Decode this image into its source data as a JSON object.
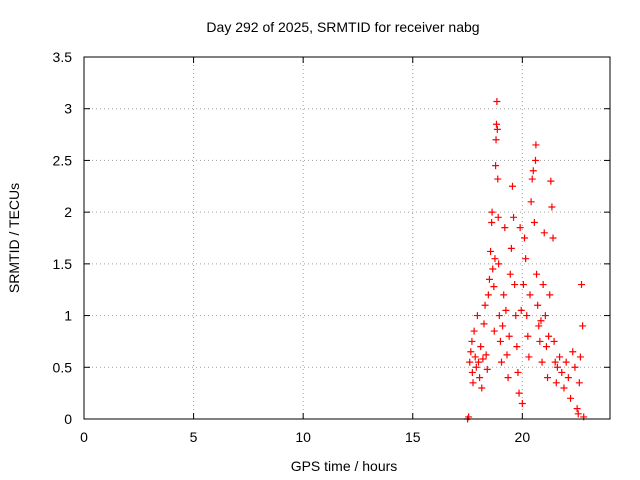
{
  "chart_data": {
    "type": "scatter",
    "title": "Day 292 of 2025, SRMTID for receiver nabg",
    "xlabel": "GPS time / hours",
    "ylabel": "SRMTID / TECUs",
    "xlim": [
      0,
      24
    ],
    "ylim": [
      0,
      3.5
    ],
    "xticks": [
      0,
      5,
      10,
      15,
      20
    ],
    "yticks": [
      0,
      0.5,
      1,
      1.5,
      2,
      2.5,
      3,
      3.5
    ],
    "xtick_labels": [
      "0",
      "5",
      "10",
      "15",
      "20"
    ],
    "ytick_labels": [
      "0",
      "0.5",
      "1",
      "1.5",
      "2",
      "2.5",
      "3",
      "3.5"
    ],
    "grid": true,
    "marker": "+",
    "color": "#ff0000",
    "series": [
      {
        "name": "SRMTID",
        "points": [
          [
            17.5,
            0.0
          ],
          [
            17.55,
            0.02
          ],
          [
            17.6,
            0.55
          ],
          [
            17.65,
            0.65
          ],
          [
            17.7,
            0.75
          ],
          [
            17.72,
            0.45
          ],
          [
            17.75,
            0.35
          ],
          [
            17.8,
            0.85
          ],
          [
            17.85,
            0.6
          ],
          [
            17.9,
            0.5
          ],
          [
            17.95,
            1.0
          ],
          [
            18.0,
            0.55
          ],
          [
            18.05,
            0.4
          ],
          [
            18.1,
            0.7
          ],
          [
            18.15,
            0.3
          ],
          [
            18.2,
            0.58
          ],
          [
            18.25,
            0.92
          ],
          [
            18.3,
            1.1
          ],
          [
            18.35,
            0.62
          ],
          [
            18.4,
            0.48
          ],
          [
            18.45,
            1.2
          ],
          [
            18.5,
            1.35
          ],
          [
            18.55,
            1.62
          ],
          [
            18.6,
            1.9
          ],
          [
            18.62,
            2.0
          ],
          [
            18.65,
            1.45
          ],
          [
            18.7,
            1.28
          ],
          [
            18.72,
            0.85
          ],
          [
            18.75,
            1.55
          ],
          [
            18.78,
            2.45
          ],
          [
            18.8,
            2.7
          ],
          [
            18.82,
            2.85
          ],
          [
            18.84,
            3.07
          ],
          [
            18.86,
            2.8
          ],
          [
            18.88,
            2.32
          ],
          [
            18.9,
            1.95
          ],
          [
            18.92,
            1.5
          ],
          [
            18.95,
            1.0
          ],
          [
            19.0,
            0.75
          ],
          [
            19.05,
            0.55
          ],
          [
            19.1,
            0.9
          ],
          [
            19.15,
            1.2
          ],
          [
            19.2,
            1.85
          ],
          [
            19.25,
            1.05
          ],
          [
            19.3,
            0.62
          ],
          [
            19.35,
            0.4
          ],
          [
            19.4,
            0.8
          ],
          [
            19.45,
            1.4
          ],
          [
            19.5,
            1.65
          ],
          [
            19.55,
            2.25
          ],
          [
            19.6,
            1.95
          ],
          [
            19.65,
            1.3
          ],
          [
            19.7,
            1.0
          ],
          [
            19.75,
            0.7
          ],
          [
            19.8,
            0.45
          ],
          [
            19.85,
            0.25
          ],
          [
            19.9,
            1.85
          ],
          [
            19.95,
            1.05
          ],
          [
            20.0,
            0.15
          ],
          [
            20.05,
            1.3
          ],
          [
            20.1,
            1.75
          ],
          [
            20.15,
            1.55
          ],
          [
            20.2,
            1.0
          ],
          [
            20.25,
            0.8
          ],
          [
            20.3,
            0.6
          ],
          [
            20.35,
            1.2
          ],
          [
            20.4,
            2.1
          ],
          [
            20.45,
            2.32
          ],
          [
            20.5,
            2.4
          ],
          [
            20.55,
            1.9
          ],
          [
            20.6,
            2.5
          ],
          [
            20.62,
            2.65
          ],
          [
            20.65,
            1.4
          ],
          [
            20.7,
            1.1
          ],
          [
            20.75,
            0.9
          ],
          [
            20.8,
            0.75
          ],
          [
            20.85,
            0.95
          ],
          [
            20.9,
            0.55
          ],
          [
            20.95,
            1.3
          ],
          [
            21.0,
            1.8
          ],
          [
            21.05,
            1.0
          ],
          [
            21.1,
            0.7
          ],
          [
            21.15,
            0.4
          ],
          [
            21.2,
            0.8
          ],
          [
            21.25,
            1.2
          ],
          [
            21.3,
            2.3
          ],
          [
            21.35,
            2.05
          ],
          [
            21.4,
            1.75
          ],
          [
            21.45,
            0.75
          ],
          [
            21.5,
            0.55
          ],
          [
            21.55,
            0.35
          ],
          [
            21.6,
            0.5
          ],
          [
            21.7,
            0.6
          ],
          [
            21.8,
            0.45
          ],
          [
            21.9,
            0.3
          ],
          [
            22.0,
            0.55
          ],
          [
            22.1,
            0.4
          ],
          [
            22.2,
            0.2
          ],
          [
            22.3,
            0.65
          ],
          [
            22.4,
            0.5
          ],
          [
            22.5,
            0.1
          ],
          [
            22.55,
            0.05
          ],
          [
            22.6,
            0.35
          ],
          [
            22.65,
            0.6
          ],
          [
            22.7,
            1.3
          ],
          [
            22.75,
            0.9
          ],
          [
            22.8,
            0.02
          ]
        ]
      }
    ]
  }
}
